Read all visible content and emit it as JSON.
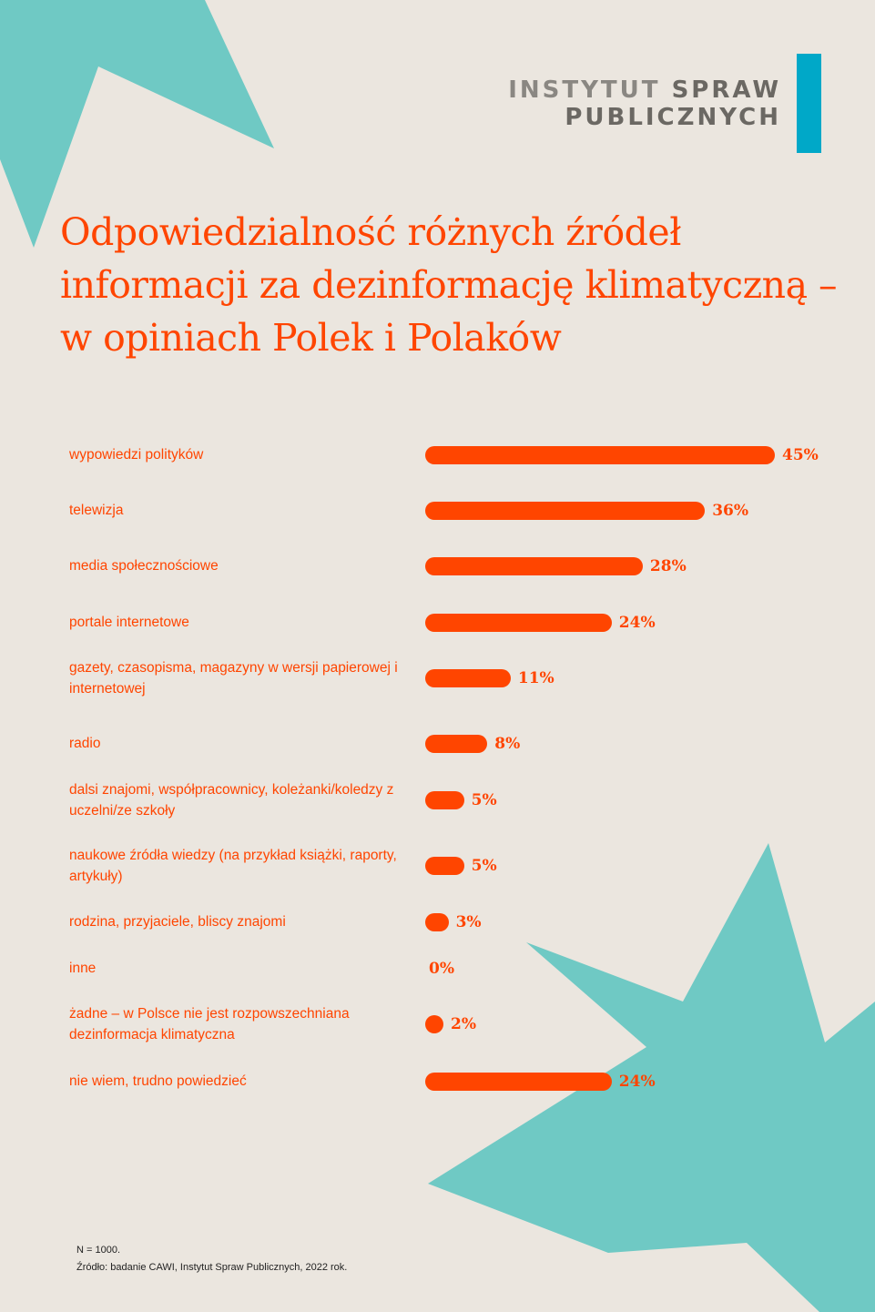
{
  "brand": {
    "line1_a": "INSTYTUT",
    "line1_b": "SPRAW",
    "line2": "PUBLICZNYCH",
    "accent": "#00a8c8"
  },
  "colors": {
    "bar": "#ff4500",
    "background": "#ebe6df",
    "decoration": "#6fc9c4"
  },
  "chart_data": {
    "type": "bar",
    "orientation": "horizontal",
    "title": "Odpowiedzialność różnych źródeł informacji za dezinformację klimatyczną – w opiniach Polek i Polaków",
    "categories": [
      "wypowiedzi polityków",
      "telewizja",
      "media społecznościowe",
      "portale internetowe",
      "gazety, czasopisma, magazyny w wersji papierowej i internetowej",
      "radio",
      "dalsi znajomi, współpracownicy, koleżanki/koledzy z uczelni/ze szkoły",
      "naukowe źródła wiedzy (na przykład książki, raporty, artykuły)",
      "rodzina, przyjaciele, bliscy znajomi",
      "inne",
      "żadne – w Polsce nie jest rozpowszechniana dezinformacja klimatyczna",
      "nie wiem, trudno powiedzieć"
    ],
    "values": [
      45,
      36,
      28,
      24,
      11,
      8,
      5,
      5,
      3,
      0,
      2,
      24
    ],
    "value_labels": [
      "45%",
      "36%",
      "28%",
      "24%",
      "11%",
      "8%",
      "5%",
      "5%",
      "3%",
      "0%",
      "2%",
      "24%"
    ],
    "unit": "%"
  },
  "notes": {
    "sample": "N = 1000.",
    "source": "Źródło: badanie CAWI, Instytut Spraw Publicznych, 2022 rok."
  }
}
